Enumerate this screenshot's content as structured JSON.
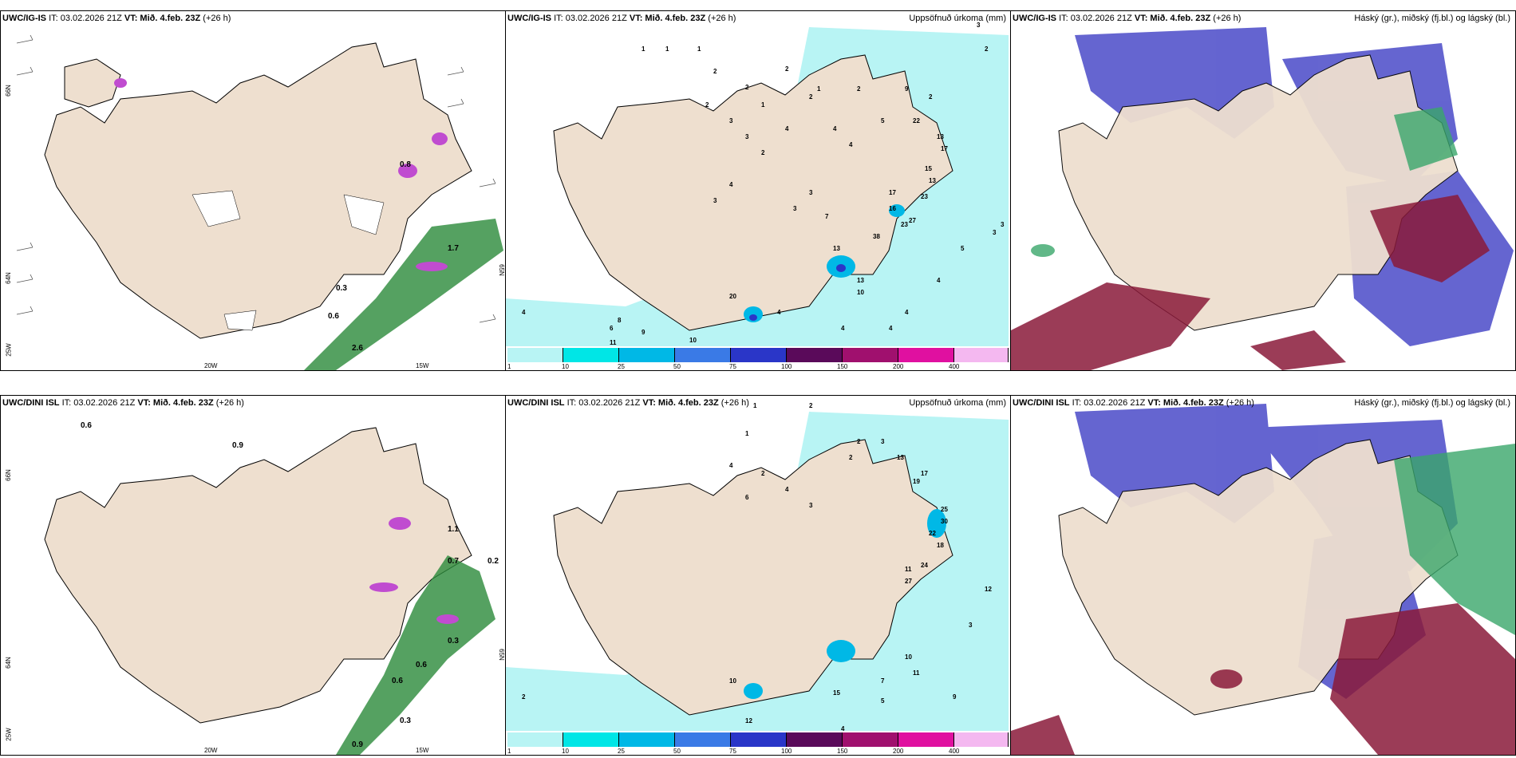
{
  "panels": {
    "ig_wind": {
      "model": "UWC/IG-IS",
      "issue": "IT: 03.02.2026 21Z",
      "valid": "VT: Mið. 4.feb. 23Z",
      "lead": "(+26 h)",
      "right_title": ""
    },
    "ig_precip": {
      "model": "UWC/IG-IS",
      "issue": "IT: 03.02.2026 21Z",
      "valid": "VT: Mið. 4.feb. 23Z",
      "lead": "(+26 h)",
      "right_title": "Uppsöfnuð úrkoma (mm)"
    },
    "ig_cloud": {
      "model": "UWC/IG-IS",
      "issue": "IT: 03.02.2026 21Z",
      "valid": "VT: Mið. 4.feb. 23Z",
      "lead": "(+26 h)",
      "right_title": "Háský (gr.), miðský (fj.bl.) og lágský (bl.)"
    },
    "dini_wind": {
      "model": "UWC/DINI ISL",
      "issue": "IT: 03.02.2026 21Z",
      "valid": "VT: Mið. 4.feb. 23Z",
      "lead": "(+26 h)",
      "right_title": ""
    },
    "dini_precip": {
      "model": "UWC/DINI ISL",
      "issue": "IT: 03.02.2026 21Z",
      "valid": "VT: Mið. 4.feb. 23Z",
      "lead": "(+26 h)",
      "right_title": "Uppsöfnuð úrkoma (mm)"
    },
    "dini_cloud": {
      "model": "UWC/DINI ISL",
      "issue": "IT: 03.02.2026 21Z",
      "valid": "VT: Mið. 4.feb. 23Z",
      "lead": "(+26 h)",
      "right_title": "Háský (gr.), miðský (fj.bl.) og lágský (bl.)"
    }
  },
  "grid_labels": {
    "lat66": "66N",
    "lat64": "64N",
    "lon25": "25W",
    "lon20": "20W",
    "lon15": "15W",
    "lat65": "65N"
  },
  "colorbar": {
    "ticks": [
      "1",
      "10",
      "25",
      "50",
      "75",
      "100",
      "150",
      "200",
      "400"
    ],
    "colors": [
      "#b8f4f4",
      "#00e6e6",
      "#00b8e6",
      "#3a7ae6",
      "#2a36c8",
      "#5a0a5a",
      "#a0106e",
      "#e010a0",
      "#f4b8f0"
    ]
  },
  "precip_values_ig": [
    "1",
    "1",
    "1",
    "2",
    "2",
    "1",
    "2",
    "1",
    "2",
    "4",
    "4",
    "2",
    "2",
    "3",
    "3",
    "2",
    "4",
    "3",
    "4",
    "9",
    "5",
    "2",
    "22",
    "13",
    "17",
    "23",
    "13",
    "15",
    "3",
    "3",
    "7",
    "17",
    "16",
    "23",
    "38",
    "27",
    "10",
    "5",
    "13",
    "4",
    "4",
    "4",
    "3",
    "20",
    "11",
    "8",
    "6",
    "9",
    "10",
    "4",
    "4",
    "4",
    "13",
    "2",
    "3",
    "3"
  ],
  "precip_values_dini": [
    "1",
    "2",
    "1",
    "2",
    "3",
    "4",
    "2",
    "6",
    "4",
    "3",
    "2",
    "13",
    "17",
    "19",
    "25",
    "30",
    "22",
    "18",
    "24",
    "27",
    "12",
    "10",
    "15",
    "7",
    "9",
    "5",
    "4",
    "10",
    "11",
    "3",
    "12",
    "2",
    "11"
  ],
  "wind_values_ig": [
    "0.6",
    "0.3",
    "2.6",
    "0.8",
    "1.7"
  ],
  "wind_values_dini": [
    "0.6",
    "0.9",
    "0.9",
    "0.7",
    "0.6",
    "0.3",
    "0.6",
    "0.3",
    "1.1",
    "0.2"
  ]
}
